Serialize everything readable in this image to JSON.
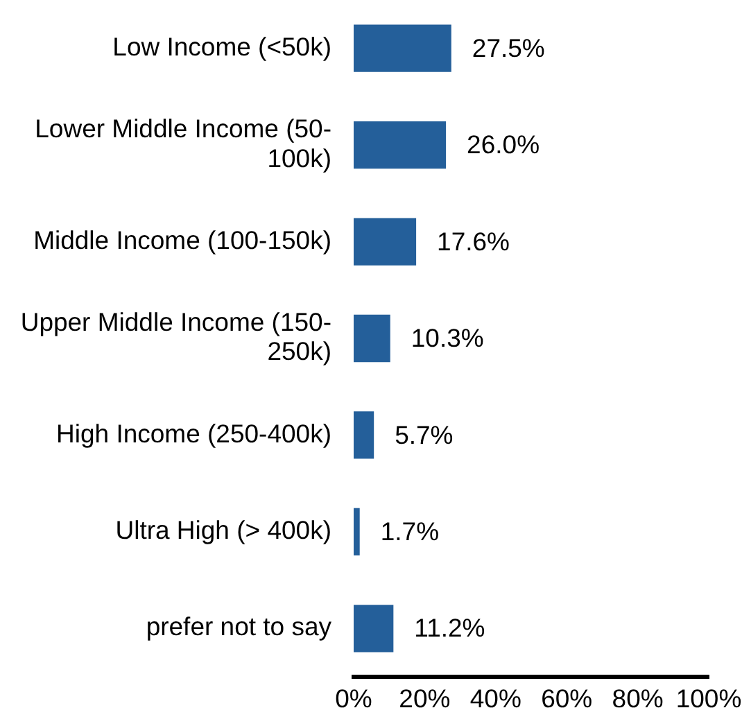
{
  "chart_data": {
    "type": "bar",
    "orientation": "horizontal",
    "categories": [
      "Low Income (<50k)",
      "Lower Middle Income (50-100k)",
      "Middle Income (100-150k)",
      "Upper Middle Income (150-250k)",
      "High Income (250-400k)",
      "Ultra High (> 400k)",
      "prefer not to say"
    ],
    "values": [
      27.5,
      26.0,
      17.6,
      10.3,
      5.7,
      1.7,
      11.2
    ],
    "color": "#245f9a",
    "value_labels": [
      "27.5%",
      "26.0%",
      "17.6%",
      "10.3%",
      "5.7%",
      "1.7%",
      "11.2%"
    ],
    "xlim": [
      0,
      100
    ],
    "xticks": [
      {
        "value": 0,
        "label": "0%"
      },
      {
        "value": 20,
        "label": "20%"
      },
      {
        "value": 40,
        "label": "40%"
      },
      {
        "value": 60,
        "label": "60%"
      },
      {
        "value": 80,
        "label": "80%"
      },
      {
        "value": 100,
        "label": "100%"
      }
    ]
  }
}
